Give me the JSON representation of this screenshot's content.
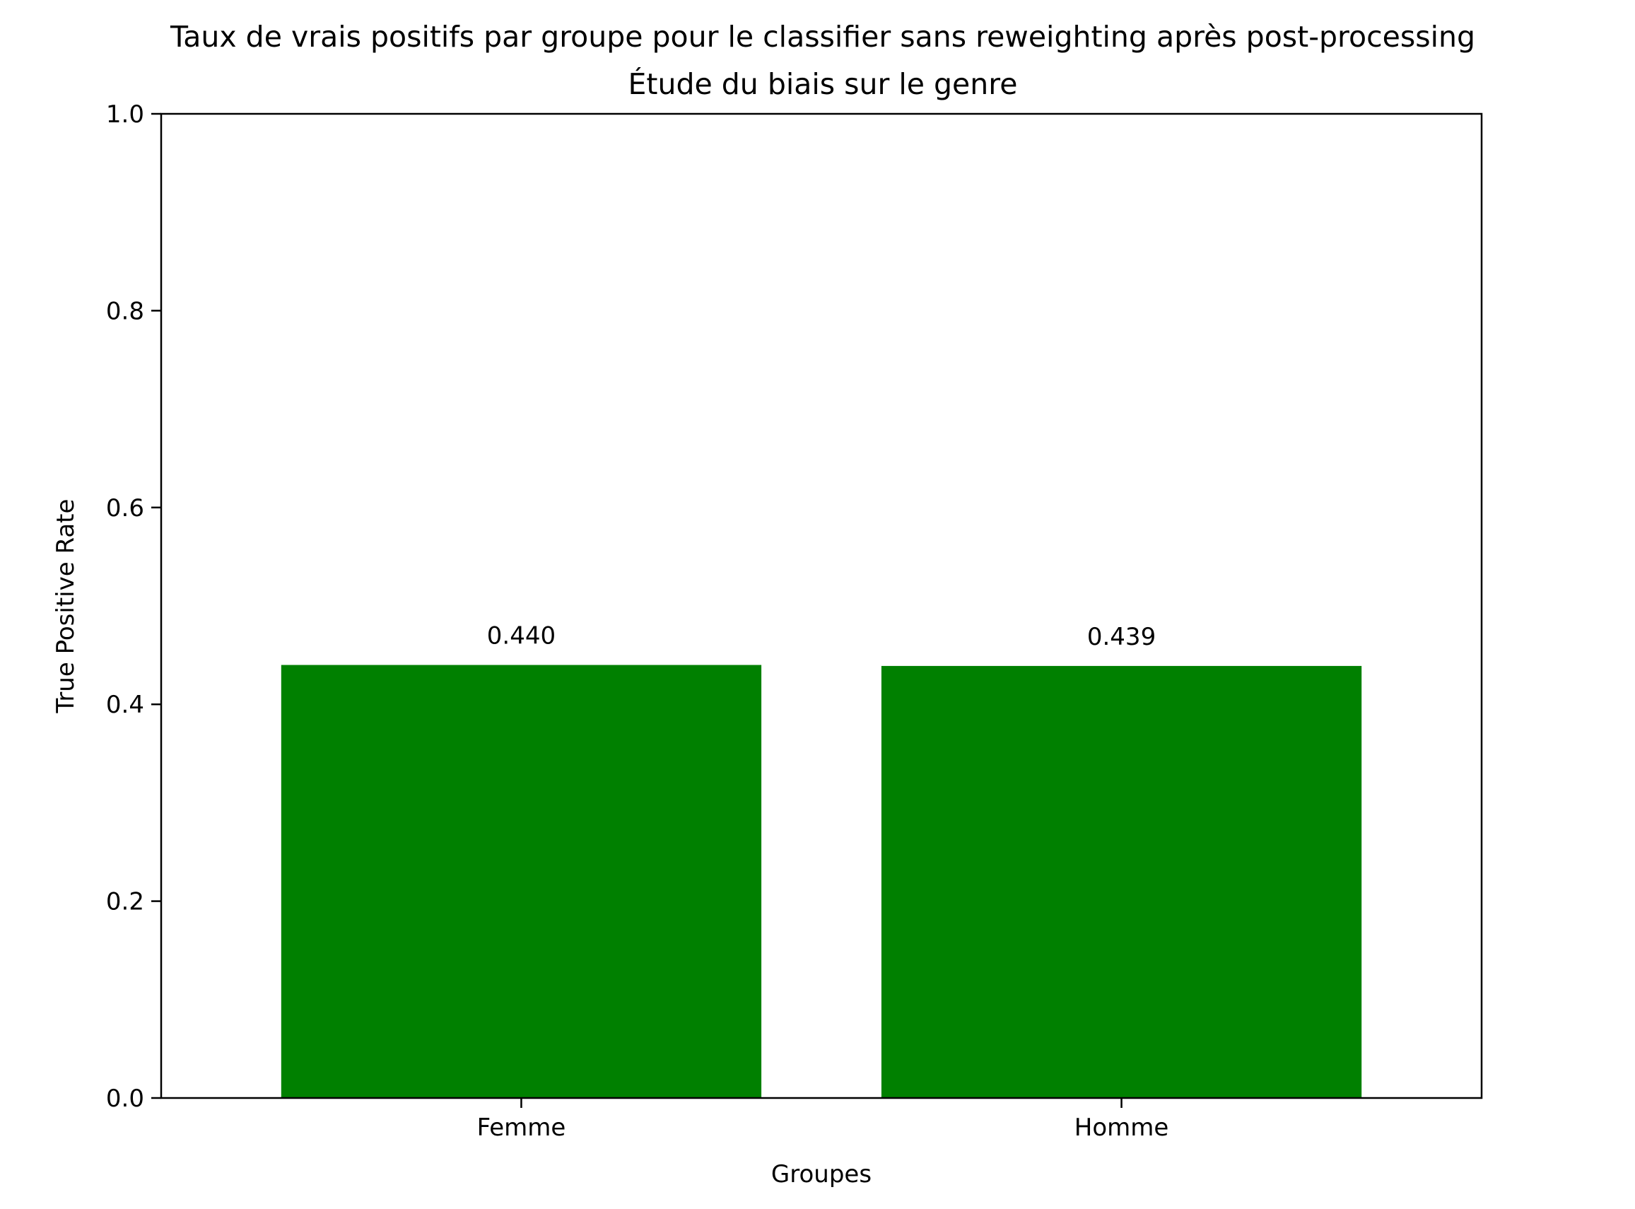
{
  "chart_data": {
    "type": "bar",
    "title": "Taux de vrais positifs par groupe pour le classifier sans reweighting après post-processing",
    "subtitle": "Étude du biais sur le genre",
    "xlabel": "Groupes",
    "ylabel": "True Positive Rate",
    "categories": [
      "Femme",
      "Homme"
    ],
    "values": [
      0.44,
      0.439
    ],
    "value_labels": [
      "0.440",
      "0.439"
    ],
    "ylim": [
      0,
      1.0
    ],
    "yticks": [
      0.0,
      0.2,
      0.4,
      0.6,
      0.8,
      1.0
    ],
    "ytick_labels": [
      "0.0",
      "0.2",
      "0.4",
      "0.6",
      "0.8",
      "1.0"
    ],
    "bar_color": "#008000",
    "grid": false,
    "legend": "none"
  }
}
